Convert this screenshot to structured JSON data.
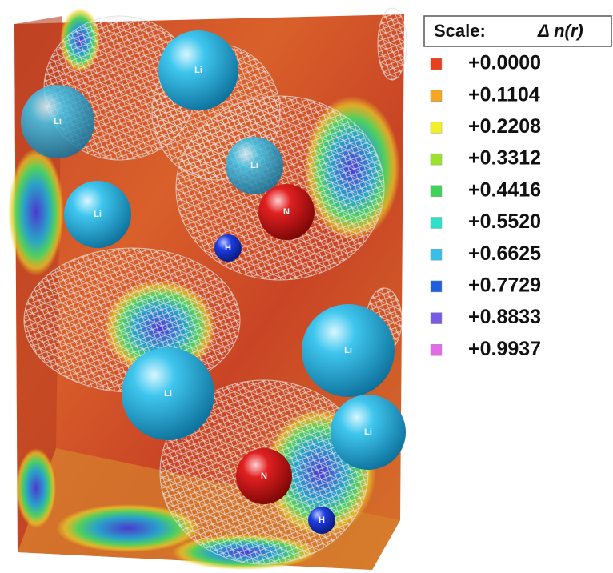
{
  "legend": {
    "title": "Scale:",
    "quantity": "Δ n(r)",
    "items": [
      {
        "label": "+0.0000",
        "color": "#e8401c"
      },
      {
        "label": "+0.1104",
        "color": "#f5a623"
      },
      {
        "label": "+0.2208",
        "color": "#f2ef2a"
      },
      {
        "label": "+0.3312",
        "color": "#9be22a"
      },
      {
        "label": "+0.4416",
        "color": "#3fd35a"
      },
      {
        "label": "+0.5520",
        "color": "#2fe0c8"
      },
      {
        "label": "+0.6625",
        "color": "#34c0e8"
      },
      {
        "label": "+0.7729",
        "color": "#1e5fe0"
      },
      {
        "label": "+0.8833",
        "color": "#7a5ae8"
      },
      {
        "label": "+0.9937",
        "color": "#e46ae8"
      }
    ]
  },
  "atoms": [
    {
      "label": "Li"
    },
    {
      "label": "Li"
    },
    {
      "label": "Li"
    },
    {
      "label": "Li"
    },
    {
      "label": "N"
    },
    {
      "label": "H"
    },
    {
      "label": "Li"
    },
    {
      "label": "Li"
    },
    {
      "label": "Li"
    },
    {
      "label": "N"
    },
    {
      "label": "H"
    }
  ]
}
